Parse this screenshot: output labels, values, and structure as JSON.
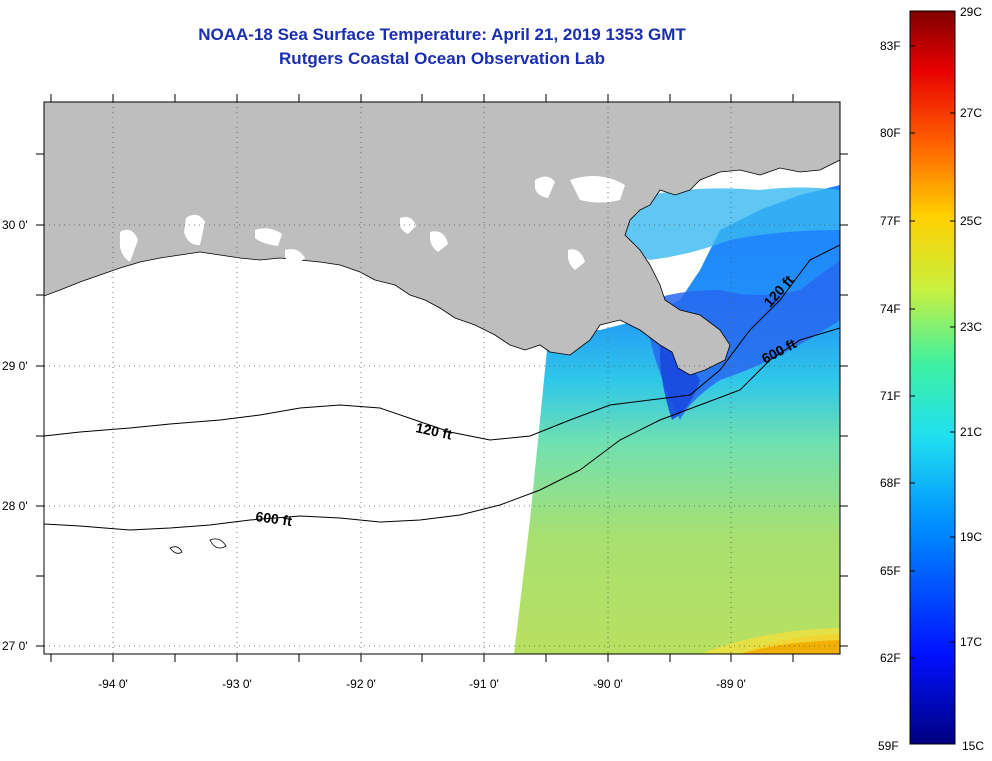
{
  "title": "NOAA-18 Sea Surface Temperature:  April 21, 2019 1353 GMT",
  "subtitle": "Rutgers Coastal Ocean Observation Lab",
  "map": {
    "lat_labels": [
      "30 0'",
      "29 0'",
      "28 0'",
      "27 0'"
    ],
    "lon_labels": [
      "-94 0'",
      "-93 0'",
      "-92 0'",
      "-91 0'",
      "-90 0'",
      "-89 0'"
    ],
    "contour_labels": [
      "120 ft",
      "600 ft",
      "120 ft",
      "600 ft"
    ]
  },
  "colorbar": {
    "fahrenheit_labels": [
      "83F",
      "80F",
      "77F",
      "74F",
      "71F",
      "68F",
      "65F",
      "62F",
      "59F"
    ],
    "celsius_labels": [
      "29C",
      "27C",
      "25C",
      "23C",
      "21C",
      "19C",
      "17C",
      "15C"
    ]
  },
  "colors": {
    "land": "#bebebe",
    "title": "#1a2fb0",
    "cold": "#1040e0",
    "mid": "#28c8e8",
    "warm": "#a8e060"
  }
}
